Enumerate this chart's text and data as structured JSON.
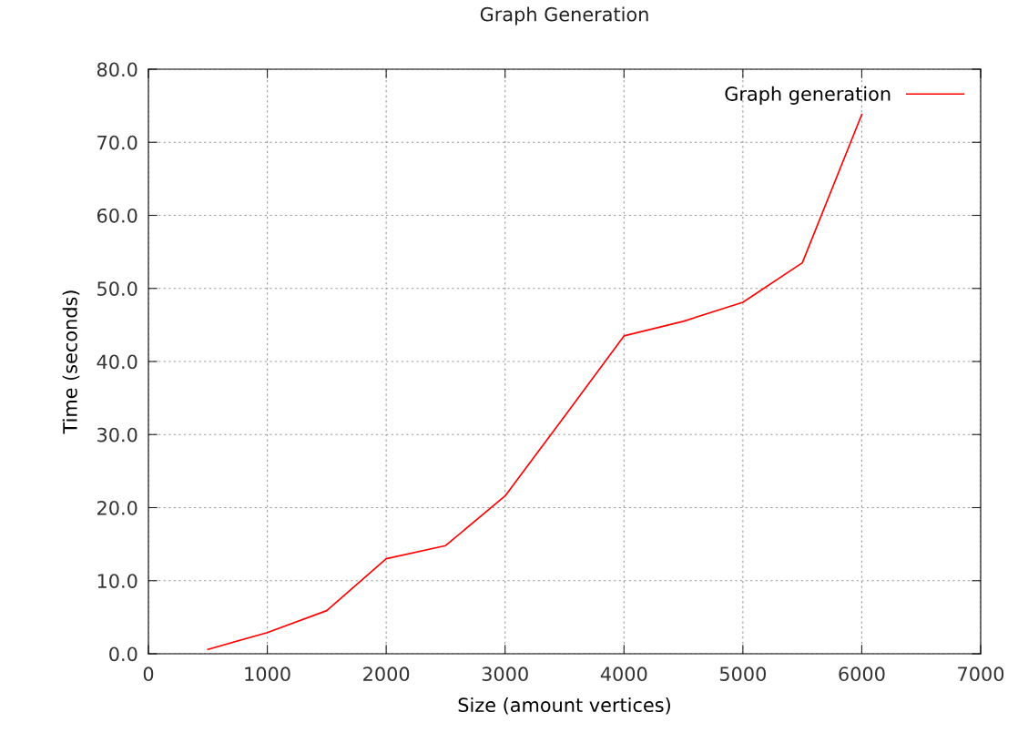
{
  "chart_data": {
    "type": "line",
    "title": "Graph Generation",
    "xlabel": "Size (amount vertices)",
    "ylabel": "Time (seconds)",
    "x": [
      500,
      1000,
      1500,
      2000,
      2500,
      3000,
      3500,
      4000,
      4500,
      5000,
      5500,
      6000
    ],
    "series": [
      {
        "name": "Graph generation",
        "color": "#ff0000",
        "values": [
          0.6,
          2.9,
          5.9,
          13.0,
          14.8,
          21.6,
          32.5,
          43.5,
          45.5,
          48.1,
          53.5,
          73.8
        ]
      }
    ],
    "xlim": [
      0,
      7000
    ],
    "xticks": [
      0,
      1000,
      2000,
      3000,
      4000,
      5000,
      6000,
      7000
    ],
    "ylim": [
      0,
      80
    ],
    "yticks": [
      {
        "value": 0,
        "label": "0.0"
      },
      {
        "value": 10,
        "label": "10.0"
      },
      {
        "value": 20,
        "label": "20.0"
      },
      {
        "value": 30,
        "label": "30.0"
      },
      {
        "value": 40,
        "label": "40.0"
      },
      {
        "value": 50,
        "label": "50.0"
      },
      {
        "value": 60,
        "label": "60.0"
      },
      {
        "value": 70,
        "label": "70.0"
      },
      {
        "value": 80,
        "label": "80.0"
      }
    ],
    "grid": true,
    "legend": "top right",
    "marker": "none",
    "line_style": "solid"
  }
}
